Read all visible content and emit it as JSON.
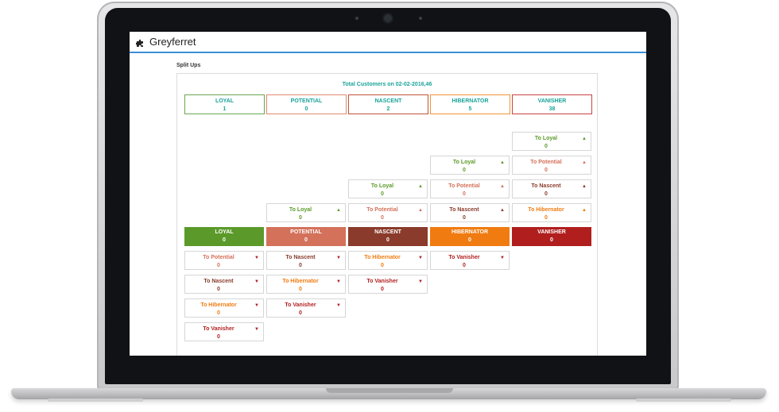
{
  "app": {
    "title": "Greyferret"
  },
  "section": {
    "title": "Split Ups"
  },
  "summary": {
    "total_text": "Total Customers on 02-02-2016,46",
    "segments": [
      {
        "label": "LOYAL",
        "count": "1"
      },
      {
        "label": "POTENTIAL",
        "count": "0"
      },
      {
        "label": "NASCENT",
        "count": "2"
      },
      {
        "label": "HIBERNATOR",
        "count": "5"
      },
      {
        "label": "VANISHER",
        "count": "38"
      }
    ]
  },
  "categories": [
    {
      "label": "LOYAL",
      "value": "0"
    },
    {
      "label": "POTENTIAL",
      "value": "0"
    },
    {
      "label": "NASCENT",
      "value": "0"
    },
    {
      "label": "HIBERNATOR",
      "value": "0"
    },
    {
      "label": "VANISHER",
      "value": "0"
    }
  ],
  "upgrades": {
    "potential": [
      {
        "label": "To Loyal",
        "value": "0"
      }
    ],
    "nascent": [
      {
        "label": "To Loyal",
        "value": "0"
      },
      {
        "label": "To Potential",
        "value": "0"
      }
    ],
    "hibernator": [
      {
        "label": "To Loyal",
        "value": "0"
      },
      {
        "label": "To Potential",
        "value": "0"
      },
      {
        "label": "To Nascent",
        "value": "0"
      }
    ],
    "vanisher": [
      {
        "label": "To Loyal",
        "value": "0"
      },
      {
        "label": "To Potential",
        "value": "0"
      },
      {
        "label": "To Nascent",
        "value": "0"
      },
      {
        "label": "To Hibernator",
        "value": "0"
      }
    ]
  },
  "downgrades": {
    "loyal": [
      {
        "label": "To Potential",
        "value": "0"
      },
      {
        "label": "To Nascent",
        "value": "0"
      },
      {
        "label": "To Hibernator",
        "value": "0"
      },
      {
        "label": "To Vanisher",
        "value": "0"
      }
    ],
    "potential": [
      {
        "label": "To Nascent",
        "value": "0"
      },
      {
        "label": "To Hibernator",
        "value": "0"
      },
      {
        "label": "To Vanisher",
        "value": "0"
      }
    ],
    "nascent": [
      {
        "label": "To Hibernator",
        "value": "0"
      },
      {
        "label": "To Vanisher",
        "value": "0"
      }
    ],
    "hibernator": [
      {
        "label": "To Vanisher",
        "value": "0"
      }
    ]
  },
  "icons": {
    "up": "arrow-up-icon",
    "down": "arrow-down-icon",
    "logo": "puzzle-icon"
  },
  "colors": {
    "accent": "#3b8fd6",
    "teal": "#1aa39a",
    "loyal": "#5b9a2a",
    "potential": "#d4715a",
    "nascent": "#8a3b2b",
    "hibernator": "#f07b10",
    "vanisher": "#b11e1e"
  }
}
